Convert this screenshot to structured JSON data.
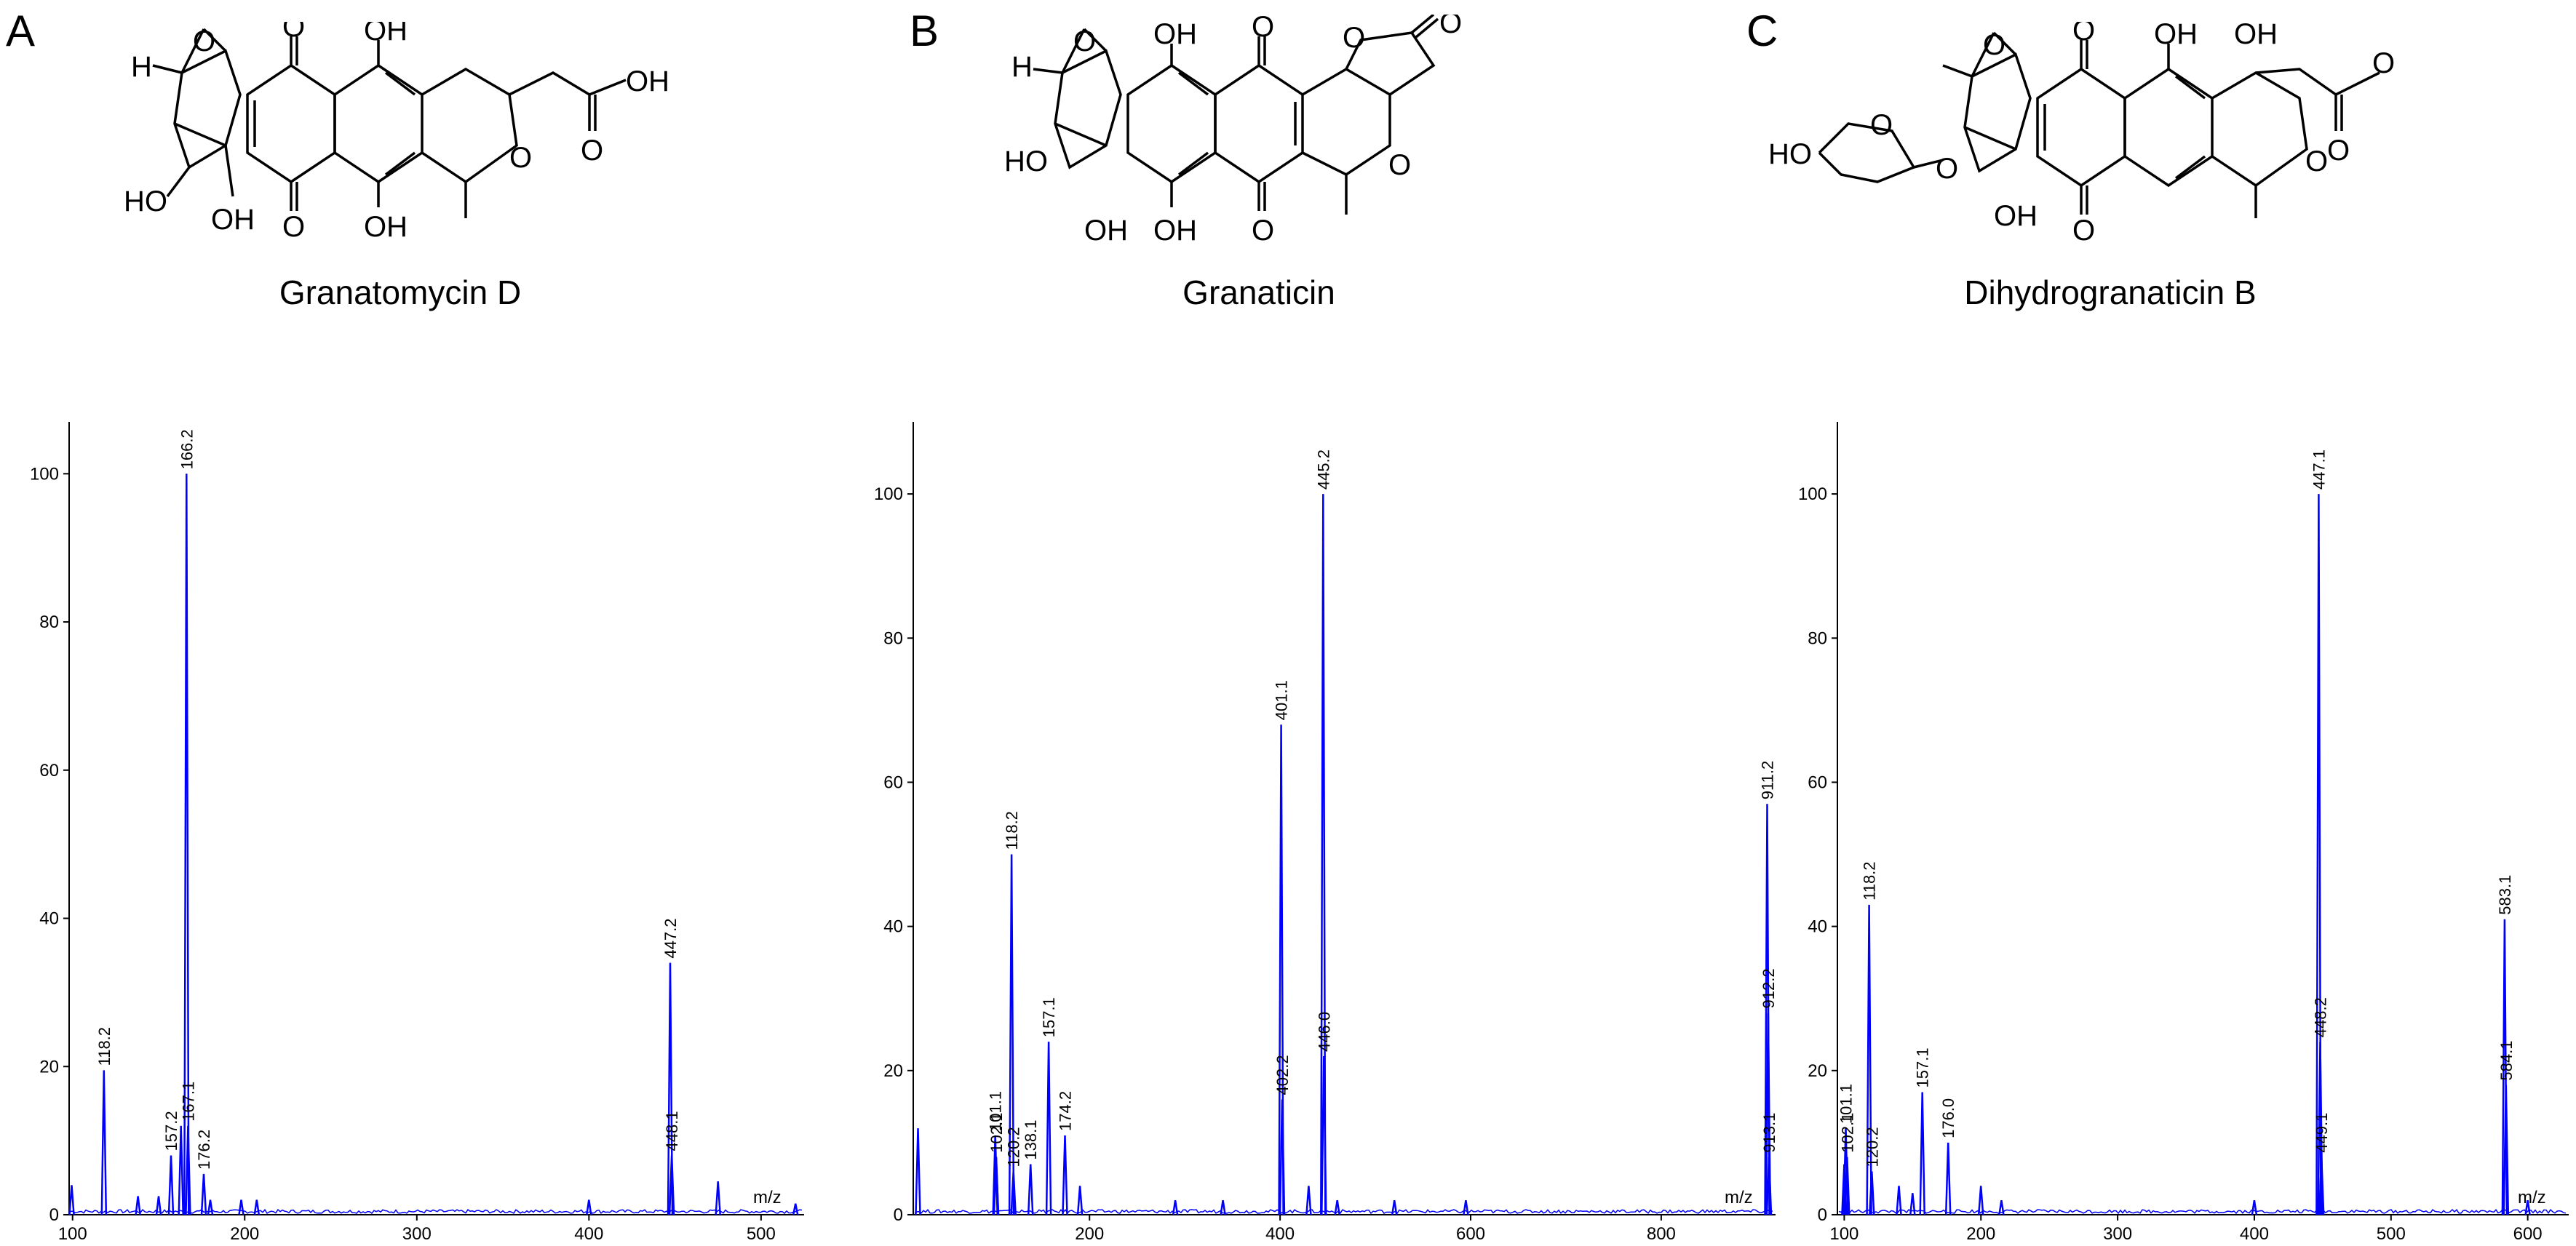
{
  "panels": [
    {
      "letter": "A",
      "compound": "Granatomycin D"
    },
    {
      "letter": "B",
      "compound": "Granaticin"
    },
    {
      "letter": "C",
      "compound": "Dihydrogranaticin B"
    }
  ],
  "structures": {
    "A": {
      "labels": {
        "h": "H",
        "o_epox": "O",
        "o_top": "O",
        "oh_top": "OH",
        "o_bot": "O",
        "oh_bot": "OH",
        "oh_left": "HO",
        "oh_mid": "OH",
        "o_ring": "O",
        "acid_o": "O",
        "acid_oh": "OH"
      }
    },
    "B": {
      "labels": {
        "h": "H",
        "o_epox": "O",
        "oh_top": "OH",
        "o_top": "O",
        "o_lac_ring": "O",
        "o_lac": "O",
        "oh_left": "HO",
        "oh_mid": "OH",
        "oh_bot": "OH",
        "o_bot": "O",
        "o_ring": "O"
      }
    },
    "C": {
      "labels": {
        "ho_sugar": "HO",
        "o_sugar": "O",
        "o_glyc": "O",
        "o_epox": "O",
        "o_top": "O",
        "oh_top": "OH",
        "oh_top2": "OH",
        "oh_mid": "OH",
        "o_bot": "O",
        "o_ring": "O",
        "ester_o1": "O",
        "ester_o2": "O"
      }
    }
  },
  "line_color": "#0000ff",
  "chart_data": [
    {
      "type": "line",
      "panel": "A",
      "xlabel": "m/z",
      "ylabel": "",
      "xlim": [
        98,
        525
      ],
      "ylim": [
        0,
        107
      ],
      "xticks": [
        100,
        200,
        300,
        400,
        500
      ],
      "yticks": [
        0,
        20,
        40,
        60,
        80,
        100
      ],
      "peaks": [
        {
          "x": 99.5,
          "y": 4
        },
        {
          "x": 118.2,
          "y": 19.5,
          "label": "118.2"
        },
        {
          "x": 138,
          "y": 2.5
        },
        {
          "x": 150,
          "y": 2.5
        },
        {
          "x": 157.2,
          "y": 8,
          "label": "157.2"
        },
        {
          "x": 163,
          "y": 12
        },
        {
          "x": 166.2,
          "y": 100,
          "label": "166.2"
        },
        {
          "x": 167.1,
          "y": 12,
          "label": "167.1"
        },
        {
          "x": 176.2,
          "y": 5.5,
          "label": "176.2"
        },
        {
          "x": 180,
          "y": 2
        },
        {
          "x": 198,
          "y": 2
        },
        {
          "x": 207,
          "y": 2
        },
        {
          "x": 400,
          "y": 2
        },
        {
          "x": 447.2,
          "y": 34,
          "label": "447.2"
        },
        {
          "x": 448.1,
          "y": 8,
          "label": "448.1"
        },
        {
          "x": 475,
          "y": 4.5
        },
        {
          "x": 520,
          "y": 1.5
        }
      ]
    },
    {
      "type": "line",
      "panel": "B",
      "xlabel": "m/z",
      "ylabel": "",
      "xlim": [
        15,
        920
      ],
      "ylim": [
        0,
        110
      ],
      "xticks": [
        200,
        400,
        600,
        800
      ],
      "yticks": [
        0,
        20,
        40,
        60,
        80,
        100
      ],
      "peaks": [
        {
          "x": 20,
          "y": 12
        },
        {
          "x": 102,
          "y": 8
        },
        {
          "x": 101.1,
          "y": 11,
          "label": "101.1"
        },
        {
          "x": 102.1,
          "y": 8,
          "label": "102.1"
        },
        {
          "x": 118.2,
          "y": 50,
          "label": "118.2"
        },
        {
          "x": 120.2,
          "y": 6,
          "label": "120.2"
        },
        {
          "x": 138.1,
          "y": 7,
          "label": "138.1"
        },
        {
          "x": 157.1,
          "y": 24,
          "label": "157.1"
        },
        {
          "x": 174.2,
          "y": 11,
          "label": "174.2"
        },
        {
          "x": 190,
          "y": 4
        },
        {
          "x": 290,
          "y": 2
        },
        {
          "x": 340,
          "y": 2
        },
        {
          "x": 401.1,
          "y": 68,
          "label": "401.1"
        },
        {
          "x": 402.2,
          "y": 16,
          "label": "402.2"
        },
        {
          "x": 430,
          "y": 4
        },
        {
          "x": 445.2,
          "y": 100,
          "label": "445.2"
        },
        {
          "x": 446.0,
          "y": 22,
          "label": "446.0"
        },
        {
          "x": 460,
          "y": 2
        },
        {
          "x": 520,
          "y": 2
        },
        {
          "x": 595,
          "y": 2
        },
        {
          "x": 911.2,
          "y": 57,
          "label": "911.2"
        },
        {
          "x": 912.2,
          "y": 28,
          "label": "912.2"
        },
        {
          "x": 913.1,
          "y": 8,
          "label": "913.1"
        }
      ]
    },
    {
      "type": "line",
      "panel": "C",
      "xlabel": "m/z",
      "ylabel": "",
      "xlim": [
        95,
        630
      ],
      "ylim": [
        0,
        110
      ],
      "xticks": [
        100,
        200,
        300,
        400,
        500,
        600
      ],
      "yticks": [
        0,
        20,
        40,
        60,
        80,
        100
      ],
      "peaks": [
        {
          "x": 100,
          "y": 7
        },
        {
          "x": 101.1,
          "y": 12,
          "label": "101.1"
        },
        {
          "x": 102.1,
          "y": 8,
          "label": "102.1"
        },
        {
          "x": 118.2,
          "y": 43,
          "label": "118.2"
        },
        {
          "x": 120.2,
          "y": 6,
          "label": "120.2"
        },
        {
          "x": 140,
          "y": 4
        },
        {
          "x": 150,
          "y": 3
        },
        {
          "x": 157.1,
          "y": 17,
          "label": "157.1"
        },
        {
          "x": 176.0,
          "y": 10,
          "label": "176.0"
        },
        {
          "x": 200,
          "y": 4
        },
        {
          "x": 215,
          "y": 2
        },
        {
          "x": 400,
          "y": 2
        },
        {
          "x": 447.1,
          "y": 100,
          "label": "447.1"
        },
        {
          "x": 448.2,
          "y": 24,
          "label": "448.2"
        },
        {
          "x": 449.1,
          "y": 8,
          "label": "449.1"
        },
        {
          "x": 583.1,
          "y": 41,
          "label": "583.1"
        },
        {
          "x": 584.1,
          "y": 18,
          "label": "584.1"
        },
        {
          "x": 600,
          "y": 2
        }
      ]
    }
  ]
}
